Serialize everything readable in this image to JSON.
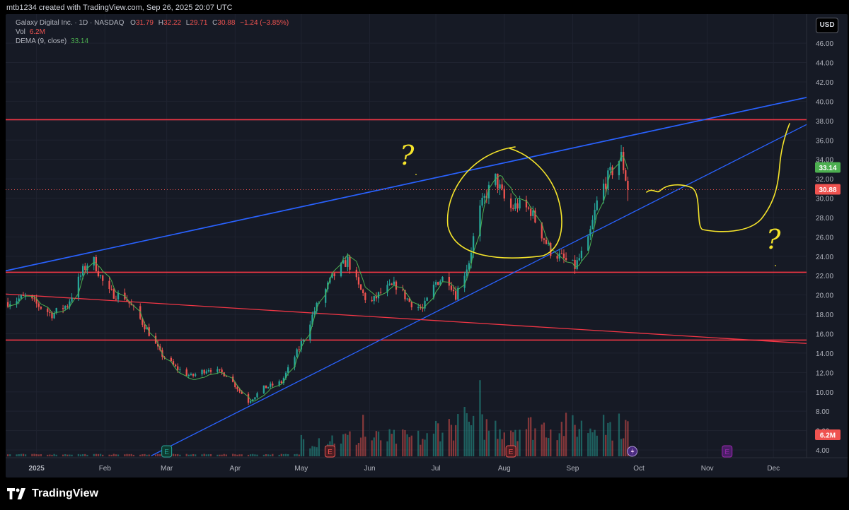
{
  "credit": "mtb1234 created with TradingView.com, Sep 26, 2025 20:07 UTC",
  "legend": {
    "symbol": "Galaxy Digital Inc. · 1D · NASDAQ",
    "o_label": "O",
    "o": "31.79",
    "h_label": "H",
    "h": "32.22",
    "l_label": "L",
    "l": "29.71",
    "c_label": "C",
    "c": "30.88",
    "change": "−1.24 (−3.85%)",
    "vol_label": "Vol",
    "vol": "6.2M",
    "dema_label": "DEMA (9, close)",
    "dema": "33.14"
  },
  "currency_button": "USD",
  "branding": "TradingView",
  "colors": {
    "up": "#26a69a",
    "down": "#ef5350",
    "dema": "#4caf50",
    "hline": "#f23645",
    "trend": "#2962ff",
    "draw": "#f5e42b",
    "bg": "#161a25",
    "text": "#b2b5be"
  },
  "chart_data": {
    "type": "candlestick",
    "instrument": "Galaxy Digital Inc.",
    "exchange": "NASDAQ",
    "interval": "1D",
    "currency": "USD",
    "y_ticks": [
      "4.00",
      "6.00",
      "8.00",
      "10.00",
      "12.00",
      "14.00",
      "16.00",
      "18.00",
      "20.00",
      "22.00",
      "24.00",
      "26.00",
      "28.00",
      "30.00",
      "32.00",
      "34.00",
      "36.00",
      "38.00",
      "40.00",
      "42.00",
      "44.00",
      "46.00"
    ],
    "ylim": [
      3.2,
      49
    ],
    "x_ticks": [
      {
        "label": "2025",
        "date": "2025-01-01"
      },
      {
        "label": "Feb",
        "date": "2025-02-01"
      },
      {
        "label": "Mar",
        "date": "2025-03-01"
      },
      {
        "label": "Apr",
        "date": "2025-04-01"
      },
      {
        "label": "May",
        "date": "2025-05-01"
      },
      {
        "label": "Jun",
        "date": "2025-06-01"
      },
      {
        "label": "Jul",
        "date": "2025-07-01"
      },
      {
        "label": "Aug",
        "date": "2025-08-01"
      },
      {
        "label": "Sep",
        "date": "2025-09-01"
      },
      {
        "label": "Oct",
        "date": "2025-10-01"
      },
      {
        "label": "Nov",
        "date": "2025-11-01"
      },
      {
        "label": "Dec",
        "date": "2025-12-01"
      }
    ],
    "xlim": [
      "2024-12-18",
      "2025-12-16"
    ],
    "price_path": [
      [
        "2024-12-18",
        19.2
      ],
      [
        "2024-12-27",
        19.8
      ],
      [
        "2025-01-08",
        18.0
      ],
      [
        "2025-01-15",
        19.0
      ],
      [
        "2025-01-22",
        22.5
      ],
      [
        "2025-01-26",
        24.0
      ],
      [
        "2025-02-02",
        20.3
      ],
      [
        "2025-02-10",
        19.8
      ],
      [
        "2025-02-20",
        16.5
      ],
      [
        "2025-02-26",
        14.0
      ],
      [
        "2025-03-05",
        12.5
      ],
      [
        "2025-03-12",
        11.6
      ],
      [
        "2025-03-20",
        12.4
      ],
      [
        "2025-03-28",
        11.8
      ],
      [
        "2025-04-02",
        10.4
      ],
      [
        "2025-04-07",
        9.0
      ],
      [
        "2025-04-14",
        10.4
      ],
      [
        "2025-04-22",
        11.0
      ],
      [
        "2025-04-30",
        14.5
      ],
      [
        "2025-05-07",
        18.4
      ],
      [
        "2025-05-15",
        21.8
      ],
      [
        "2025-05-22",
        23.6
      ],
      [
        "2025-05-27",
        20.8
      ],
      [
        "2025-06-01",
        19.0
      ],
      [
        "2025-06-07",
        20.5
      ],
      [
        "2025-06-13",
        21.0
      ],
      [
        "2025-06-19",
        19.3
      ],
      [
        "2025-06-25",
        18.5
      ],
      [
        "2025-07-01",
        21.3
      ],
      [
        "2025-07-06",
        22.0
      ],
      [
        "2025-07-10",
        20.0
      ],
      [
        "2025-07-16",
        23.5
      ],
      [
        "2025-07-20",
        28.2
      ],
      [
        "2025-07-24",
        30.5
      ],
      [
        "2025-07-28",
        32.0
      ],
      [
        "2025-08-03",
        28.8
      ],
      [
        "2025-08-07",
        29.3
      ],
      [
        "2025-08-13",
        28.7
      ],
      [
        "2025-08-16",
        27.2
      ],
      [
        "2025-08-22",
        24.5
      ],
      [
        "2025-08-26",
        24.0
      ],
      [
        "2025-09-02",
        22.9
      ],
      [
        "2025-09-08",
        25.5
      ],
      [
        "2025-09-13",
        30.5
      ],
      [
        "2025-09-18",
        32.5
      ],
      [
        "2025-09-23",
        34.3
      ],
      [
        "2025-09-25",
        32.1
      ],
      [
        "2025-09-26",
        30.88
      ]
    ],
    "last_price": 30.88,
    "dema_last": 33.14,
    "volume_last": "6.2M",
    "volume_spikes": [
      {
        "date": "2025-06-28",
        "rel": 1.0
      },
      {
        "date": "2025-07-21",
        "rel": 0.77
      },
      {
        "date": "2025-07-14",
        "rel": 0.5
      },
      {
        "date": "2025-05-29",
        "rel": 0.42
      },
      {
        "date": "2025-09-15",
        "rel": 0.42
      }
    ],
    "horizontal_levels": [
      38.1,
      22.35,
      15.35
    ],
    "trend_lines": [
      {
        "name": "upper-resistance",
        "from": [
          "2024-12-18",
          22.5
        ],
        "to": [
          "2025-12-16",
          40.4
        ]
      },
      {
        "name": "rising-support",
        "from": [
          "2025-02-22",
          3.4
        ],
        "to": [
          "2025-12-16",
          37.6
        ]
      },
      {
        "name": "descending-line",
        "from": [
          "2024-12-18",
          20.1
        ],
        "to": [
          "2025-12-16",
          15.0
        ]
      }
    ],
    "event_markers": [
      {
        "date": "2025-03-01",
        "kind": "E",
        "past": true
      },
      {
        "date": "2025-05-14",
        "kind": "E",
        "past": true
      },
      {
        "date": "2025-08-04",
        "kind": "E",
        "past": true
      },
      {
        "date": "2025-09-28",
        "kind": "lightning",
        "past": false
      },
      {
        "date": "2025-11-10",
        "kind": "E",
        "past": false
      }
    ],
    "annotations": [
      "?",
      "?"
    ]
  }
}
